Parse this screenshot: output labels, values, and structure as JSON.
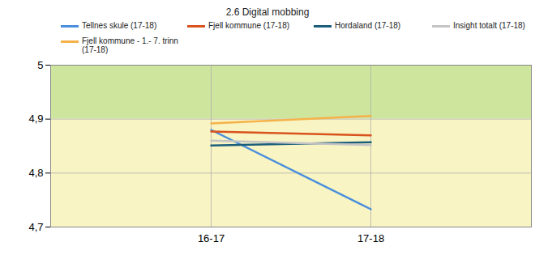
{
  "chart_data": {
    "type": "line",
    "title": "2.6 Digital mobbing",
    "categories": [
      null,
      "16-17",
      "17-18",
      null
    ],
    "series": [
      {
        "name": "Tellnes skule (17-18)",
        "color": "#4a8fdc",
        "values": [
          null,
          4.88,
          4.733,
          null
        ]
      },
      {
        "name": "Fjell kommune (17-18)",
        "color": "#d9531e",
        "values": [
          null,
          4.877,
          4.87,
          null
        ]
      },
      {
        "name": "Hordaland (17-18)",
        "color": "#1b5e7b",
        "values": [
          null,
          4.851,
          4.857,
          null
        ]
      },
      {
        "name": "Insight totalt (17-18)",
        "color": "#c4c4c4",
        "values": [
          null,
          4.86,
          4.852,
          null
        ]
      },
      {
        "name": "Fjell kommune - 1.- 7. trinn (17-18)",
        "color": "#f5b24a",
        "values": [
          null,
          4.892,
          4.906,
          null
        ]
      }
    ],
    "bands": [
      {
        "from": 4.9,
        "to": 5,
        "color": "#cde59d"
      },
      {
        "from": 4.7,
        "to": 4.9,
        "color": "#f8f4c3"
      }
    ],
    "ylim": [
      4.7,
      5
    ],
    "yticks": [
      {
        "value": 4.7,
        "label": "4,7"
      },
      {
        "value": 4.8,
        "label": "4,8"
      },
      {
        "value": 4.9,
        "label": "4,9"
      },
      5
    ],
    "grid": true,
    "legend": "top"
  }
}
